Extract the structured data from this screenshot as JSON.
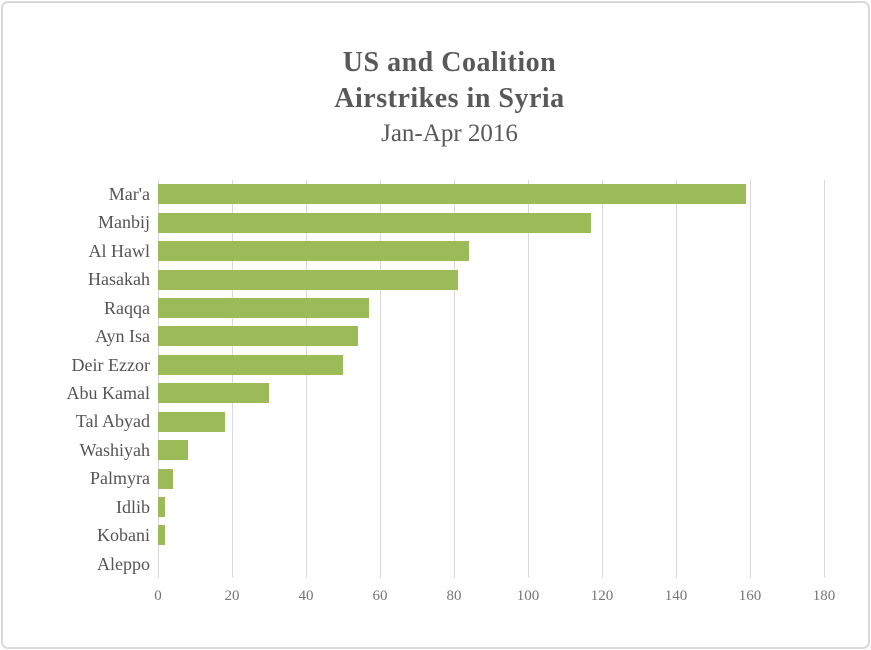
{
  "frame": {
    "border_color": "#d9d9d9",
    "background": "#ffffff"
  },
  "title": {
    "line1": "US and Coalition",
    "line2": "Airstrikes in Syria",
    "line3": "Jan-Apr 2016",
    "color": "#595959"
  },
  "chart_data": {
    "type": "bar",
    "orientation": "horizontal",
    "title": "US and Coalition Airstrikes in Syria Jan-Apr 2016",
    "xlabel": "",
    "ylabel": "",
    "categories": [
      "Mar'a",
      "Manbij",
      "Al Hawl",
      "Hasakah",
      "Raqqa",
      "Ayn Isa",
      "Deir Ezzor",
      "Abu Kamal",
      "Tal Abyad",
      "Washiyah",
      "Palmyra",
      "Idlib",
      "Kobani",
      "Aleppo"
    ],
    "values": [
      159,
      117,
      84,
      81,
      57,
      54,
      50,
      30,
      18,
      8,
      4,
      2,
      2,
      0
    ],
    "xlim": [
      0,
      180
    ],
    "x_ticks": [
      0,
      20,
      40,
      60,
      80,
      100,
      120,
      140,
      160,
      180
    ],
    "grid": "vertical-only",
    "legend": "none",
    "bar_color": "#9bbb59",
    "gridline_color": "#d9d9d9",
    "tick_label_color": "#757575",
    "category_label_color": "#545454"
  }
}
